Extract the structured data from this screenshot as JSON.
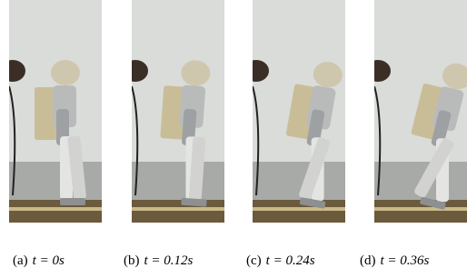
{
  "figure": {
    "panels": [
      {
        "label": "(a)",
        "caption": "t = 0s"
      },
      {
        "label": "(b)",
        "caption": "t = 0.12s"
      },
      {
        "label": "(c)",
        "caption": "t = 0.24s"
      },
      {
        "label": "(d)",
        "caption": "t = 0.36s"
      }
    ]
  }
}
